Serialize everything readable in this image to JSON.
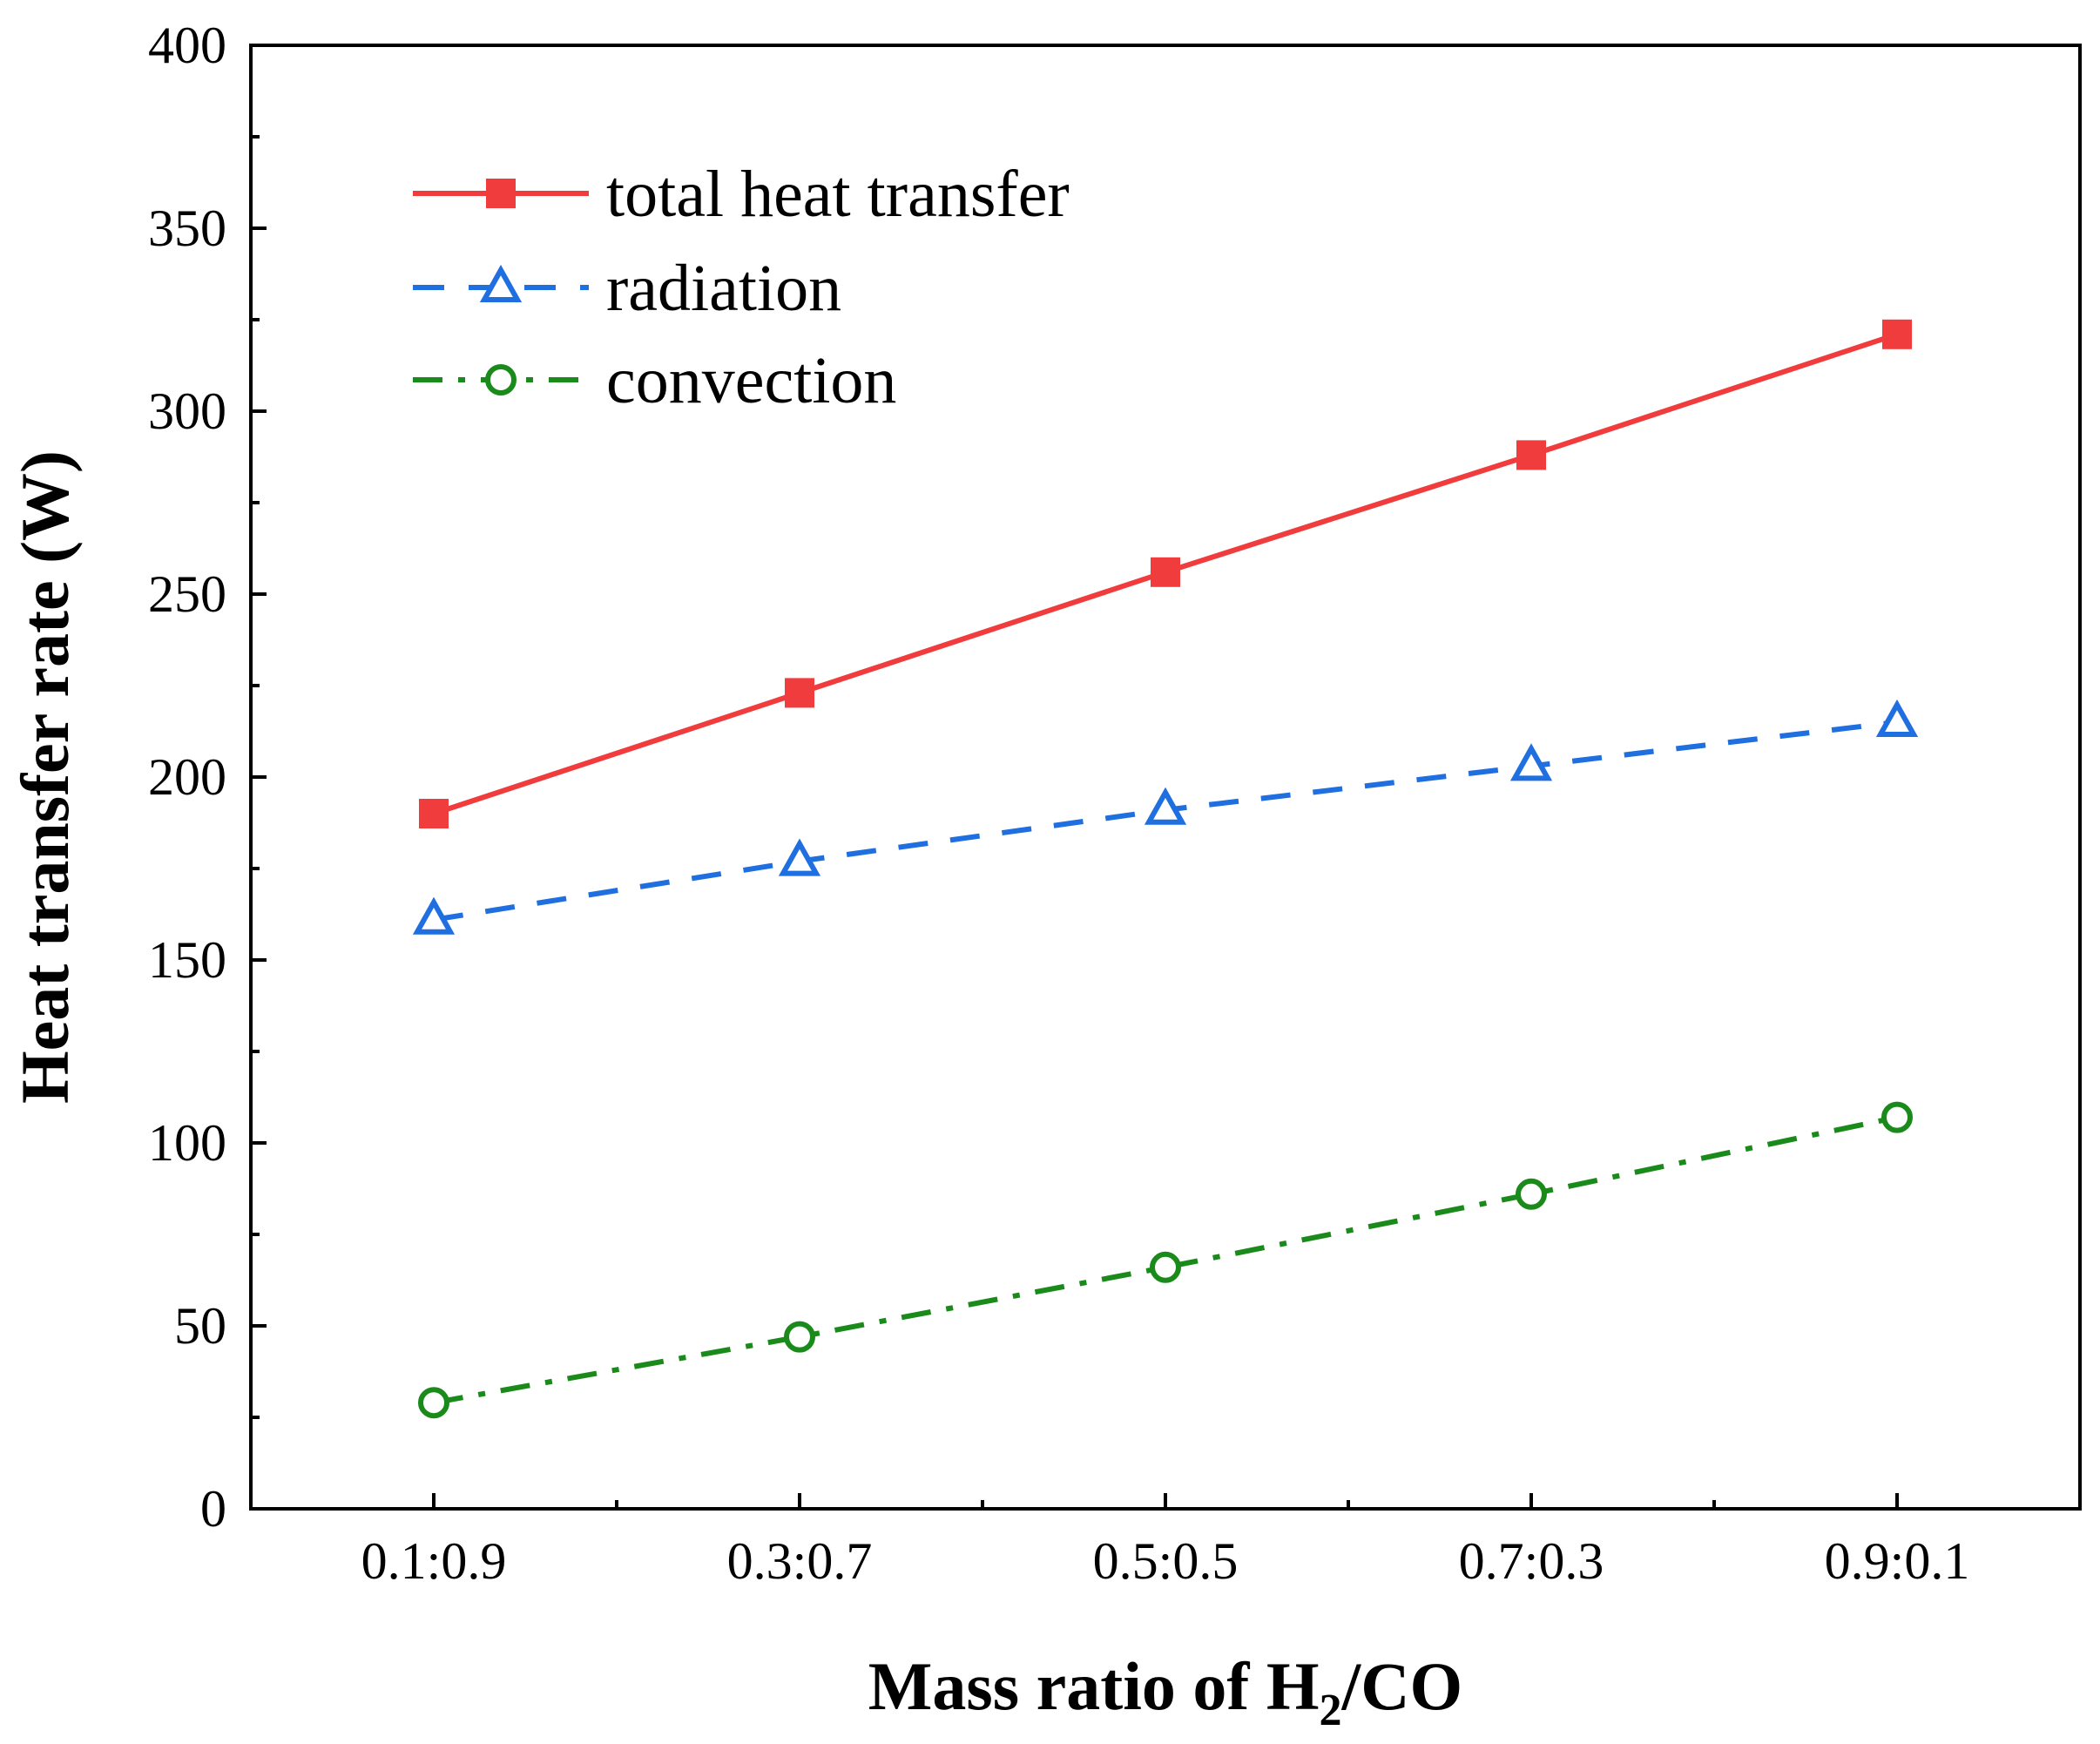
{
  "chart_data": {
    "type": "line",
    "categories": [
      "0.1:0.9",
      "0.3:0.7",
      "0.5:0.5",
      "0.7:0.3",
      "0.9:0.1"
    ],
    "xlabel": {
      "main": "Mass ratio of H",
      "sub": "2",
      "tail": "/CO"
    },
    "ylabel": "Heat transfer rate (W)",
    "ylim": [
      0,
      400
    ],
    "yticks": [
      0,
      50,
      100,
      150,
      200,
      250,
      300,
      350,
      400
    ],
    "grid": false,
    "legend_position": "top-left",
    "series": [
      {
        "name": "total heat transfer",
        "values": [
          190,
          223,
          256,
          288,
          321
        ],
        "color": "#f03c3c",
        "marker": "square",
        "line": "solid"
      },
      {
        "name": "radiation",
        "values": [
          161,
          177,
          191,
          203,
          215
        ],
        "color": "#1f6fe0",
        "marker": "triangle-open",
        "line": "dash"
      },
      {
        "name": "convection",
        "values": [
          29,
          47,
          66,
          86,
          107
        ],
        "color": "#1a8a1a",
        "marker": "circle-open",
        "line": "dashdot"
      }
    ]
  }
}
